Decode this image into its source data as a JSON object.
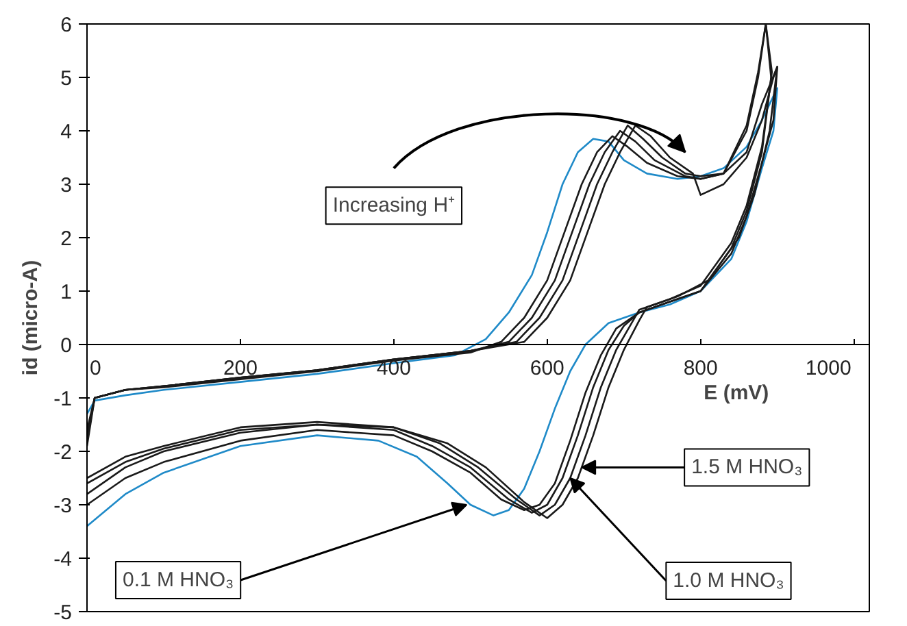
{
  "chart_data": {
    "type": "line",
    "xlabel": "E (mV)",
    "ylabel": "id (micro-A)",
    "xlim": [
      0,
      1020
    ],
    "ylim": [
      -5,
      6
    ],
    "xticks": [
      0,
      200,
      400,
      600,
      800,
      1000
    ],
    "yticks": [
      -5,
      -4,
      -3,
      -2,
      -1,
      0,
      1,
      2,
      3,
      4,
      5,
      6
    ],
    "grid": false,
    "marker": "none",
    "line_style": "solid",
    "series": [
      {
        "color": "#1f8ac8",
        "x": [
          0,
          10,
          50,
          100,
          200,
          300,
          400,
          480,
          520,
          550,
          580,
          600,
          620,
          640,
          660,
          680,
          700,
          730,
          770,
          800,
          830,
          860,
          880,
          900,
          895,
          880,
          860,
          840,
          800,
          760,
          720,
          680,
          650,
          630,
          610,
          590,
          570,
          550,
          530,
          500,
          470,
          430,
          380,
          300,
          200,
          100,
          50,
          0
        ],
        "values": [
          -1.3,
          -1.05,
          -0.95,
          -0.85,
          -0.7,
          -0.55,
          -0.35,
          -0.2,
          0.1,
          0.6,
          1.3,
          2.1,
          3.0,
          3.6,
          3.85,
          3.8,
          3.45,
          3.2,
          3.1,
          3.15,
          3.3,
          3.7,
          4.2,
          4.8,
          4.0,
          3.3,
          2.3,
          1.6,
          1.0,
          0.75,
          0.6,
          0.4,
          0.0,
          -0.5,
          -1.2,
          -2.0,
          -2.7,
          -3.1,
          -3.2,
          -3.0,
          -2.6,
          -2.1,
          -1.8,
          -1.7,
          -1.9,
          -2.4,
          -2.8,
          -3.4
        ]
      },
      {
        "color": "#1a1a1a",
        "x": [
          0,
          10,
          50,
          100,
          200,
          300,
          400,
          500,
          540,
          570,
          600,
          625,
          645,
          665,
          685,
          705,
          730,
          770,
          800,
          830,
          860,
          880,
          900,
          895,
          880,
          860,
          840,
          800,
          760,
          720,
          690,
          670,
          650,
          630,
          610,
          590,
          570,
          540,
          500,
          450,
          400,
          300,
          200,
          100,
          50,
          0
        ],
        "values": [
          -1.6,
          -1.0,
          -0.85,
          -0.8,
          -0.65,
          -0.5,
          -0.3,
          -0.15,
          0.05,
          0.5,
          1.2,
          2.2,
          3.0,
          3.6,
          3.9,
          3.7,
          3.4,
          3.15,
          3.1,
          3.2,
          3.6,
          4.5,
          5.2,
          4.2,
          3.4,
          2.4,
          1.7,
          1.0,
          0.8,
          0.6,
          0.3,
          -0.2,
          -0.9,
          -1.8,
          -2.6,
          -3.0,
          -3.1,
          -2.9,
          -2.4,
          -2.0,
          -1.7,
          -1.6,
          -1.8,
          -2.2,
          -2.5,
          -3.0
        ]
      },
      {
        "color": "#1a1a1a",
        "x": [
          0,
          10,
          50,
          100,
          200,
          300,
          400,
          500,
          550,
          580,
          610,
          635,
          655,
          675,
          695,
          715,
          740,
          780,
          800,
          830,
          860,
          875,
          885,
          892,
          880,
          860,
          840,
          800,
          760,
          720,
          700,
          680,
          660,
          640,
          620,
          600,
          580,
          550,
          500,
          450,
          400,
          300,
          200,
          100,
          50,
          0
        ],
        "values": [
          -1.7,
          -1.0,
          -0.85,
          -0.78,
          -0.62,
          -0.48,
          -0.28,
          -0.12,
          0.05,
          0.5,
          1.2,
          2.2,
          3.0,
          3.6,
          4.0,
          3.8,
          3.45,
          3.15,
          3.1,
          3.2,
          4.0,
          5.0,
          6.0,
          5.0,
          3.6,
          2.5,
          1.8,
          1.0,
          0.8,
          0.6,
          0.35,
          -0.1,
          -0.8,
          -1.7,
          -2.5,
          -3.0,
          -3.15,
          -2.9,
          -2.3,
          -1.9,
          -1.6,
          -1.5,
          -1.65,
          -2.0,
          -2.3,
          -2.8
        ]
      },
      {
        "color": "#1a1a1a",
        "x": [
          0,
          10,
          50,
          100,
          200,
          300,
          400,
          500,
          560,
          590,
          620,
          645,
          665,
          685,
          705,
          725,
          750,
          780,
          800,
          830,
          860,
          875,
          885,
          893,
          880,
          860,
          840,
          800,
          760,
          720,
          710,
          690,
          670,
          650,
          630,
          610,
          590,
          560,
          510,
          460,
          400,
          300,
          200,
          100,
          50,
          0
        ],
        "values": [
          -1.8,
          -1.0,
          -0.85,
          -0.78,
          -0.62,
          -0.48,
          -0.28,
          -0.12,
          0.05,
          0.5,
          1.2,
          2.2,
          3.0,
          3.6,
          4.1,
          3.85,
          3.5,
          3.2,
          3.15,
          3.2,
          4.1,
          5.1,
          6.0,
          5.1,
          3.7,
          2.6,
          1.9,
          1.1,
          0.85,
          0.65,
          0.4,
          -0.1,
          -0.8,
          -1.7,
          -2.5,
          -3.0,
          -3.2,
          -2.9,
          -2.3,
          -1.85,
          -1.55,
          -1.5,
          -1.6,
          -1.95,
          -2.2,
          -2.6
        ]
      },
      {
        "color": "#1a1a1a",
        "x": [
          0,
          10,
          50,
          100,
          200,
          300,
          400,
          500,
          570,
          600,
          630,
          655,
          675,
          695,
          715,
          735,
          760,
          790,
          800,
          830,
          860,
          880,
          895,
          900,
          890,
          870,
          850,
          810,
          770,
          730,
          720,
          700,
          680,
          660,
          640,
          620,
          600,
          570,
          520,
          470,
          400,
          300,
          200,
          100,
          50,
          0
        ],
        "values": [
          -1.9,
          -1.0,
          -0.85,
          -0.78,
          -0.62,
          -0.48,
          -0.28,
          -0.12,
          0.05,
          0.5,
          1.2,
          2.2,
          3.0,
          3.6,
          4.1,
          3.9,
          3.5,
          3.2,
          2.8,
          3.0,
          3.5,
          4.2,
          5.0,
          5.2,
          4.0,
          2.8,
          2.0,
          1.2,
          0.9,
          0.7,
          0.45,
          -0.1,
          -0.8,
          -1.7,
          -2.5,
          -3.0,
          -3.25,
          -2.95,
          -2.3,
          -1.85,
          -1.55,
          -1.45,
          -1.55,
          -1.9,
          -2.1,
          -2.5
        ]
      }
    ],
    "annotations": [
      "Increasing H⁺",
      {
        "text": "1.5 M HNO₃",
        "x": 645,
        "y": -2.3
      },
      {
        "text": "1.0 M HNO₃",
        "x": 630,
        "y": -2.5
      },
      {
        "text": "0.1 M HNO₃",
        "x": 495,
        "y": -3.0
      }
    ]
  }
}
